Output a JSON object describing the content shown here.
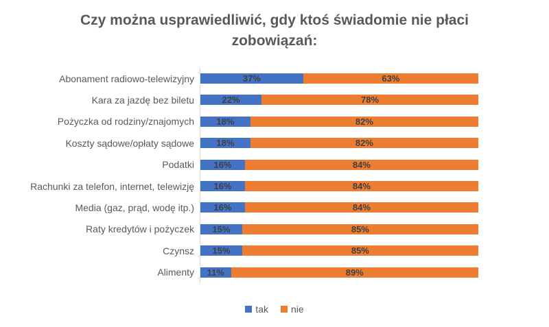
{
  "title": "Czy można usprawiedliwić, gdy ktoś świadomie nie płaci zobowiązań:",
  "chart_data": {
    "type": "bar",
    "orientation": "horizontal",
    "stacked": true,
    "percent_stacked": true,
    "categories": [
      "Abonament radiowo-telewizyjny",
      "Kara za jazdę bez biletu",
      "Pożyczka od rodziny/znajomych",
      "Koszty sądowe/opłaty sądowe",
      "Podatki",
      "Rachunki za telefon, internet, telewizję",
      "Media (gaz, prąd, wodę itp.)",
      "Raty kredytów i pożyczek",
      "Czynsz",
      "Alimenty"
    ],
    "series": [
      {
        "name": "tak",
        "color": "#4472c4",
        "values": [
          37,
          22,
          18,
          18,
          16,
          16,
          16,
          15,
          15,
          11
        ]
      },
      {
        "name": "nie",
        "color": "#ed7d31",
        "values": [
          63,
          78,
          82,
          82,
          84,
          84,
          84,
          85,
          85,
          89
        ]
      }
    ],
    "value_suffix": "%",
    "xlim": [
      0,
      100
    ],
    "grid": false,
    "legend_position": "bottom"
  },
  "colors": {
    "title": "#595959",
    "category_label": "#595959",
    "value_label": "#404040",
    "axis_line": "#d9d9d9",
    "background": "#ffffff"
  }
}
